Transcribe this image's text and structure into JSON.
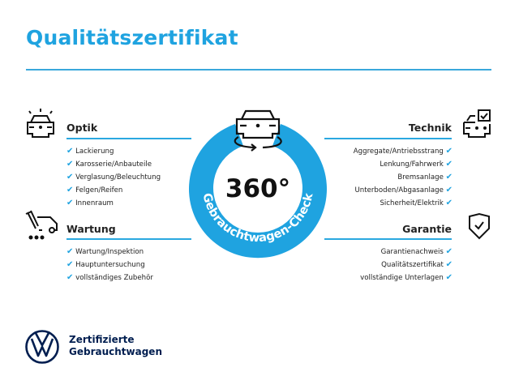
{
  "title": "Qualitätszertifikat",
  "center": {
    "big": "360°",
    "arc_text": "Gebrauchtwagen-Check"
  },
  "sections": {
    "optik": {
      "heading": "Optik",
      "icon": "car-lights-icon",
      "items": [
        "Lackierung",
        "Karosserie/Anbauteile",
        "Verglasung/Beleuchtung",
        "Felgen/Reifen",
        "Innenraum"
      ]
    },
    "wartung": {
      "heading": "Wartung",
      "icon": "service-truck-icon",
      "items": [
        "Wartung/Inspektion",
        "Hauptuntersuchung",
        "vollständiges Zubehör"
      ]
    },
    "technik": {
      "heading": "Technik",
      "icon": "car-checkbox-icon",
      "items": [
        "Aggregate/Antriebsstrang",
        "Lenkung/Fahrwerk",
        "Bremsanlage",
        "Unterboden/Abgasanlage",
        "Sicherheit/Elektrik"
      ]
    },
    "garantie": {
      "heading": "Garantie",
      "icon": "shield-check-icon",
      "items": [
        "Garantienachweis",
        "Qualitätszertifikat",
        "vollständige Unterlagen"
      ]
    }
  },
  "check_glyph": "✔",
  "brand": {
    "line1": "Zertifizierte",
    "line2": "Gebrauchtwagen"
  },
  "colors": {
    "accent": "#1fa3e0",
    "navy": "#001e50"
  }
}
